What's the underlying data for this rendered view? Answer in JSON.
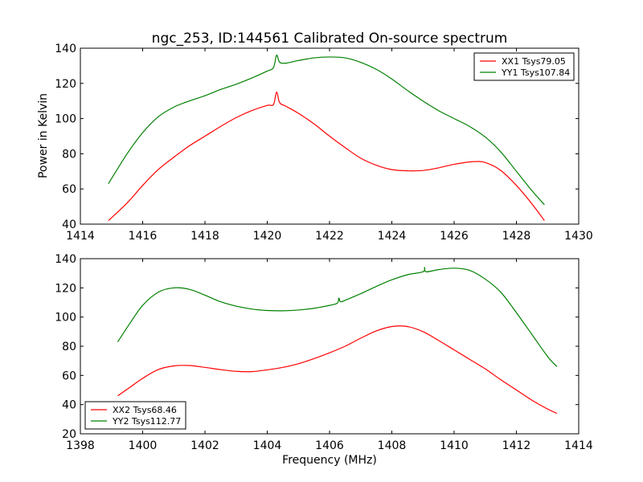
{
  "chart_data": [
    {
      "type": "line",
      "title": "ngc_253, ID:144561 Calibrated On-source spectrum",
      "xlabel": "",
      "ylabel": "Power in Kelvin",
      "xlim": [
        1414,
        1430
      ],
      "ylim": [
        40,
        140
      ],
      "xticks": [
        1414,
        1416,
        1418,
        1420,
        1422,
        1424,
        1426,
        1428,
        1430
      ],
      "yticks": [
        40,
        60,
        80,
        100,
        120,
        140
      ],
      "legend_position": "top-right",
      "series": [
        {
          "name": "XX1 Tsys79.05",
          "color": "#ff0000",
          "x": [
            1414.9,
            1415.5,
            1416,
            1416.5,
            1417,
            1417.5,
            1418,
            1418.5,
            1419,
            1419.5,
            1420,
            1420.2,
            1420.3,
            1420.4,
            1420.6,
            1421,
            1421.5,
            1422,
            1422.5,
            1423,
            1423.5,
            1424,
            1424.5,
            1425,
            1425.5,
            1426,
            1426.6,
            1427,
            1427.5,
            1428,
            1428.5,
            1428.9
          ],
          "y": [
            42,
            52,
            62,
            71,
            78,
            84.5,
            90,
            95.5,
            100.5,
            104.5,
            107.5,
            108,
            115,
            109,
            107,
            103,
            97,
            90,
            83.5,
            77.5,
            73.5,
            71,
            70.3,
            70.5,
            72,
            74,
            75.5,
            75,
            70.5,
            62,
            51.5,
            42
          ]
        },
        {
          "name": "YY1 Tsys107.84",
          "color": "#008000",
          "x": [
            1414.9,
            1415.5,
            1416,
            1416.5,
            1417,
            1417.5,
            1418,
            1418.5,
            1419,
            1419.5,
            1420,
            1420.2,
            1420.3,
            1420.4,
            1420.6,
            1421,
            1421.5,
            1422,
            1422.5,
            1423,
            1423.5,
            1424,
            1424.5,
            1425,
            1425.5,
            1426,
            1426.5,
            1427,
            1427.5,
            1428,
            1428.5,
            1428.9
          ],
          "y": [
            63,
            80,
            92,
            101,
            106.5,
            110,
            113,
            116.5,
            119.5,
            123,
            127,
            129,
            136,
            132,
            131.5,
            133,
            134.5,
            135,
            134.5,
            132,
            128,
            122.5,
            116,
            110,
            104.5,
            100,
            95.5,
            89.5,
            81,
            70,
            59,
            51
          ]
        }
      ]
    },
    {
      "type": "line",
      "title": "",
      "xlabel": "Frequency (MHz)",
      "ylabel": "",
      "xlim": [
        1398,
        1414
      ],
      "ylim": [
        20,
        140
      ],
      "xticks": [
        1398,
        1400,
        1402,
        1404,
        1406,
        1408,
        1410,
        1412,
        1414
      ],
      "yticks": [
        20,
        40,
        60,
        80,
        100,
        120,
        140
      ],
      "legend_position": "bottom-left",
      "series": [
        {
          "name": "XX2 Tsys68.46",
          "color": "#ff0000",
          "x": [
            1399.2,
            1399.6,
            1400,
            1400.5,
            1401,
            1401.5,
            1402,
            1402.5,
            1403,
            1403.5,
            1404,
            1404.5,
            1405,
            1405.5,
            1406,
            1406.5,
            1407,
            1407.5,
            1408,
            1408.5,
            1409,
            1409.5,
            1410,
            1410.5,
            1411,
            1411.5,
            1412,
            1412.5,
            1413,
            1413.3
          ],
          "y": [
            46,
            52,
            58,
            64,
            66.5,
            66.8,
            65.5,
            64,
            62.8,
            62.6,
            63.8,
            65.5,
            68,
            71.5,
            75.5,
            80,
            85.5,
            90.5,
            93.5,
            93.5,
            90,
            84,
            77.5,
            71,
            64.5,
            57,
            50,
            43,
            37,
            34
          ]
        },
        {
          "name": "YY2 Tsys112.77",
          "color": "#008000",
          "x": [
            1399.2,
            1399.6,
            1400,
            1400.5,
            1401,
            1401.5,
            1402,
            1402.5,
            1403,
            1403.5,
            1404,
            1404.5,
            1405,
            1405.5,
            1406,
            1406.25,
            1406.3,
            1406.35,
            1406.5,
            1407,
            1407.5,
            1408,
            1408.5,
            1409,
            1409.05,
            1409.1,
            1409.5,
            1410,
            1410.5,
            1411,
            1411.5,
            1412,
            1412.5,
            1413,
            1413.3
          ],
          "y": [
            83,
            96,
            108,
            117,
            120,
            119,
            115,
            110.5,
            107.5,
            105.5,
            104.5,
            104.3,
            104.8,
            106,
            108,
            109.5,
            113,
            110.5,
            111.5,
            116,
            121,
            125.5,
            129,
            131,
            134,
            131,
            132.5,
            133.5,
            132,
            126,
            117,
            103,
            88,
            73,
            66
          ]
        }
      ]
    }
  ]
}
